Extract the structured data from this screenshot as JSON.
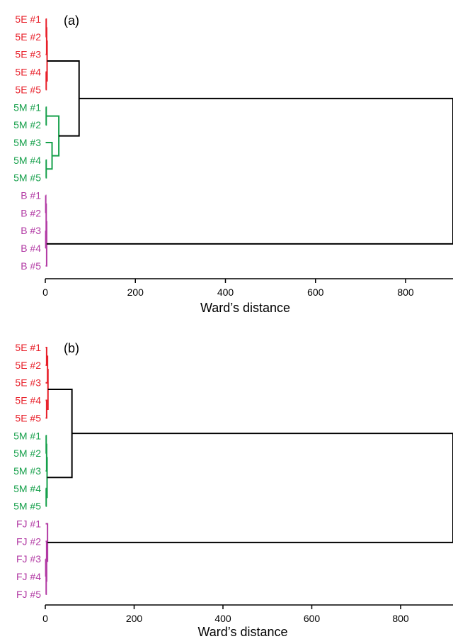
{
  "colors": {
    "red": "#e8202a",
    "green": "#16a04b",
    "purple": "#b23aa4",
    "black": "#000000"
  },
  "chart_data": [
    {
      "type": "dendrogram",
      "panel_label": "(a)",
      "xlabel": "Ward’s distance",
      "xticks": [
        0,
        200,
        400,
        600,
        800
      ],
      "xlim": [
        0,
        910
      ],
      "leaves": [
        {
          "label": "5E #1",
          "group": "red"
        },
        {
          "label": "5E #2",
          "group": "red"
        },
        {
          "label": "5E #3",
          "group": "red"
        },
        {
          "label": "5E #4",
          "group": "red"
        },
        {
          "label": "5E #5",
          "group": "red"
        },
        {
          "label": "5M #1",
          "group": "green"
        },
        {
          "label": "5M #2",
          "group": "green"
        },
        {
          "label": "5M #3",
          "group": "green"
        },
        {
          "label": "5M #4",
          "group": "green"
        },
        {
          "label": "5M #5",
          "group": "green"
        },
        {
          "label": "B #1",
          "group": "purple"
        },
        {
          "label": "B #2",
          "group": "purple"
        },
        {
          "label": "B #3",
          "group": "purple"
        },
        {
          "label": "B #4",
          "group": "purple"
        },
        {
          "label": "B #5",
          "group": "purple"
        }
      ],
      "merges": [
        {
          "children": [
            "L0",
            "L1"
          ],
          "height": 2,
          "group": "red"
        },
        {
          "children": [
            "L3",
            "L4"
          ],
          "height": 2,
          "group": "red"
        },
        {
          "children": [
            "M0",
            "L2"
          ],
          "height": 3,
          "group": "red"
        },
        {
          "children": [
            "M2",
            "M1"
          ],
          "height": 4,
          "group": "red"
        },
        {
          "children": [
            "L5",
            "L6"
          ],
          "height": 2,
          "group": "green"
        },
        {
          "children": [
            "L8",
            "L9"
          ],
          "height": 2,
          "group": "green"
        },
        {
          "children": [
            "L7",
            "M5"
          ],
          "height": 15,
          "group": "green"
        },
        {
          "children": [
            "M4",
            "M6"
          ],
          "height": 30,
          "group": "green"
        },
        {
          "children": [
            "M3",
            "M7"
          ],
          "height": 75,
          "group": "black"
        },
        {
          "children": [
            "L10",
            "L11"
          ],
          "height": 1,
          "group": "purple"
        },
        {
          "children": [
            "L12",
            "L13"
          ],
          "height": 1,
          "group": "purple"
        },
        {
          "children": [
            "M9",
            "M10"
          ],
          "height": 2,
          "group": "purple"
        },
        {
          "children": [
            "M11",
            "L14"
          ],
          "height": 3,
          "group": "purple"
        },
        {
          "children": [
            "M8",
            "M12"
          ],
          "height": 1100,
          "group": "black"
        }
      ]
    },
    {
      "type": "dendrogram",
      "panel_label": "(b)",
      "xlabel": "Ward’s distance",
      "xticks": [
        0,
        200,
        400,
        600,
        800
      ],
      "xlim": [
        0,
        910
      ],
      "leaves": [
        {
          "label": "5E #1",
          "group": "red"
        },
        {
          "label": "5E #2",
          "group": "red"
        },
        {
          "label": "5E #3",
          "group": "red"
        },
        {
          "label": "5E #4",
          "group": "red"
        },
        {
          "label": "5E #5",
          "group": "red"
        },
        {
          "label": "5M #1",
          "group": "green"
        },
        {
          "label": "5M #2",
          "group": "green"
        },
        {
          "label": "5M #3",
          "group": "green"
        },
        {
          "label": "5M #4",
          "group": "green"
        },
        {
          "label": "5M #5",
          "group": "green"
        },
        {
          "label": "FJ #1",
          "group": "purple"
        },
        {
          "label": "FJ #2",
          "group": "purple"
        },
        {
          "label": "FJ #3",
          "group": "purple"
        },
        {
          "label": "FJ #4",
          "group": "purple"
        },
        {
          "label": "FJ #5",
          "group": "purple"
        }
      ],
      "merges": [
        {
          "children": [
            "L0",
            "L1"
          ],
          "height": 3,
          "group": "red"
        },
        {
          "children": [
            "L3",
            "L4"
          ],
          "height": 3,
          "group": "red"
        },
        {
          "children": [
            "M0",
            "L2"
          ],
          "height": 5,
          "group": "red"
        },
        {
          "children": [
            "M2",
            "M1"
          ],
          "height": 6,
          "group": "red"
        },
        {
          "children": [
            "L5",
            "L6"
          ],
          "height": 2,
          "group": "green"
        },
        {
          "children": [
            "L8",
            "L9"
          ],
          "height": 2,
          "group": "green"
        },
        {
          "children": [
            "M4",
            "L7"
          ],
          "height": 3,
          "group": "green"
        },
        {
          "children": [
            "M6",
            "M5"
          ],
          "height": 4,
          "group": "green"
        },
        {
          "children": [
            "M3",
            "M7"
          ],
          "height": 60,
          "group": "black"
        },
        {
          "children": [
            "L12",
            "L13"
          ],
          "height": 1,
          "group": "purple"
        },
        {
          "children": [
            "M9",
            "L14"
          ],
          "height": 2,
          "group": "purple"
        },
        {
          "children": [
            "L11",
            "M10"
          ],
          "height": 3,
          "group": "purple"
        },
        {
          "children": [
            "L10",
            "M11"
          ],
          "height": 5,
          "group": "purple"
        },
        {
          "children": [
            "M8",
            "M12"
          ],
          "height": 1100,
          "group": "black"
        }
      ]
    }
  ]
}
